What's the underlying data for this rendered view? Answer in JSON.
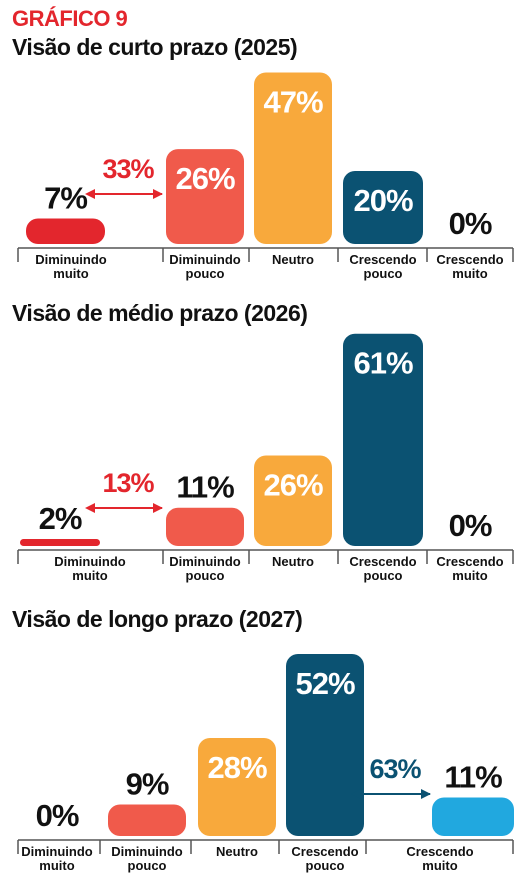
{
  "header": {
    "kicker": "GRÁFICO 9"
  },
  "colors": {
    "diminuindo_muito": "#e3262d",
    "diminuindo_pouco": "#f05a4b",
    "neutro": "#f8a93c",
    "crescendo_pouco": "#0b5272",
    "crescendo_muito": "#21a8df",
    "axis": "#555555",
    "text": "#111111",
    "bar_label": "#ffffff"
  },
  "chart_data": [
    {
      "type": "bar",
      "title": "Visão de curto prazo (2025)",
      "categories": [
        [
          "Diminuindo",
          "muito"
        ],
        [
          "Diminuindo",
          "pouco"
        ],
        [
          "Neutro"
        ],
        [
          "Crescendo",
          "pouco"
        ],
        [
          "Crescendo",
          "muito"
        ]
      ],
      "values": [
        7,
        26,
        47,
        20,
        0
      ],
      "value_labels": [
        "7%",
        "26%",
        "47%",
        "20%",
        "0%"
      ],
      "value_unit": "%",
      "annotation": {
        "text": "33%",
        "between": [
          0,
          1
        ],
        "color": "#e3262d"
      }
    },
    {
      "type": "bar",
      "title": "Visão de médio prazo (2026)",
      "categories": [
        [
          "Diminuindo",
          "muito"
        ],
        [
          "Diminuindo",
          "pouco"
        ],
        [
          "Neutro"
        ],
        [
          "Crescendo",
          "pouco"
        ],
        [
          "Crescendo",
          "muito"
        ]
      ],
      "values": [
        2,
        11,
        26,
        61,
        0
      ],
      "value_labels": [
        "2%",
        "11%",
        "26%",
        "61%",
        "0%"
      ],
      "value_unit": "%",
      "annotation": {
        "text": "13%",
        "between": [
          0,
          1
        ],
        "color": "#e3262d"
      }
    },
    {
      "type": "bar",
      "title": "Visão de longo prazo (2027)",
      "categories": [
        [
          "Diminuindo",
          "muito"
        ],
        [
          "Diminuindo",
          "pouco"
        ],
        [
          "Neutro"
        ],
        [
          "Crescendo",
          "pouco"
        ],
        [
          "Crescendo",
          "muito"
        ]
      ],
      "values": [
        0,
        9,
        28,
        52,
        11
      ],
      "value_labels": [
        "0%",
        "9%",
        "28%",
        "52%",
        "11%"
      ],
      "value_unit": "%",
      "annotation": {
        "text": "63%",
        "between": [
          3,
          4
        ],
        "color": "#0b5272"
      }
    }
  ]
}
